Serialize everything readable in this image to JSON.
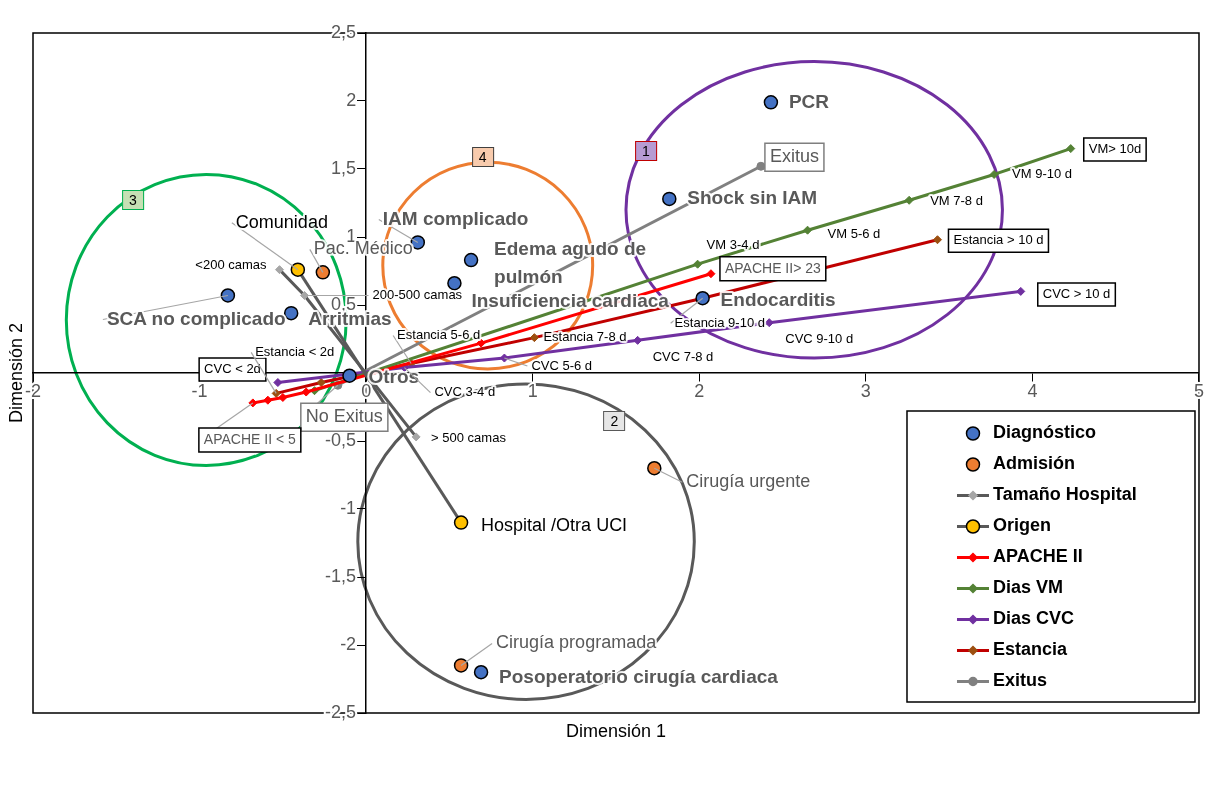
{
  "chart_data": {
    "type": "scatter",
    "xlabel": "Dimensión 1",
    "ylabel": "Dimensión 2",
    "xlim": [
      -2,
      5
    ],
    "ylim": [
      -2.5,
      2.5
    ],
    "xticks": [
      -2,
      -1,
      0,
      1,
      2,
      3,
      4,
      5
    ],
    "yticks": [
      {
        "value": 2.5,
        "label": "2,5"
      },
      2,
      {
        "value": 1.5,
        "label": "1,5"
      },
      1,
      {
        "value": 0.5,
        "label": "0,5"
      },
      {
        "value": 0,
        "label": null
      },
      {
        "value": -0.5,
        "label": "-0,5"
      },
      -1,
      {
        "value": -1.5,
        "label": "-1,5"
      },
      -2,
      {
        "value": -2.5,
        "label": "-2,5"
      }
    ],
    "legend": "bottom right",
    "series": [
      {
        "name": "Diagnóstico",
        "type": "scatter",
        "marker": "circle",
        "color": "#4472c4",
        "x": [
          2.43,
          1.82,
          0.31,
          0.63,
          0.53,
          2.02,
          -0.83,
          -0.45,
          -0.1,
          0.69
        ],
        "values": [
          1.99,
          1.28,
          0.96,
          0.83,
          0.66,
          0.55,
          0.57,
          0.44,
          -0.02,
          -2.2
        ]
      },
      {
        "name": "Admisión",
        "type": "scatter",
        "marker": "circle",
        "color": "#ed7d31",
        "x": [
          -0.26,
          1.73,
          0.57
        ],
        "values": [
          0.74,
          -0.7,
          -2.15
        ]
      },
      {
        "name": "Tamaño Hospital",
        "type": "line",
        "marker": "diamond",
        "color": "#595959",
        "colors": [
          "#a6a6a6",
          "#a6a6a6",
          "#a6a6a6"
        ],
        "x": [
          -0.52,
          -0.37,
          0.3
        ],
        "values": [
          0.76,
          0.57,
          -0.47
        ]
      },
      {
        "name": "Origen",
        "type": "line",
        "marker": "circle",
        "color": "#595959",
        "colors": [
          "#ffc000",
          "#ffc000"
        ],
        "x": [
          -0.41,
          0.57
        ],
        "values": [
          0.76,
          -1.1
        ]
      },
      {
        "name": "APACHE II",
        "type": "line",
        "marker": "diamond",
        "color": "#ff0000",
        "x": [
          -0.68,
          -0.59,
          -0.5,
          -0.36,
          0.69,
          2.07
        ],
        "values": [
          -0.22,
          -0.2,
          -0.18,
          -0.14,
          0.22,
          0.73
        ]
      },
      {
        "name": "Dias VM",
        "type": "line",
        "marker": "diamond",
        "color": "#548235",
        "x": [
          -0.31,
          1.99,
          2.65,
          3.26,
          3.77,
          4.23
        ],
        "values": [
          -0.13,
          0.8,
          1.05,
          1.27,
          1.46,
          1.65
        ]
      },
      {
        "name": "Dias CVC",
        "type": "line",
        "marker": "diamond",
        "color": "#7030a0",
        "x": [
          -0.53,
          0.23,
          0.83,
          1.63,
          2.42,
          3.93
        ],
        "values": [
          -0.07,
          0.04,
          0.11,
          0.24,
          0.37,
          0.6
        ]
      },
      {
        "name": "Estancia",
        "type": "line",
        "marker": "diamond",
        "color": "#c00000",
        "colors": [
          "#9c4f10",
          "#9c4f10",
          "#9c4f10",
          "#9c4f10",
          "#9c4f10",
          "#9c4f10"
        ],
        "x": [
          -0.54,
          -0.27,
          0.27,
          1.01,
          2.02,
          3.43
        ],
        "values": [
          -0.15,
          -0.07,
          0.07,
          0.26,
          0.55,
          0.98
        ]
      },
      {
        "name": "Exitus",
        "type": "line",
        "marker": "circle",
        "color": "#808080",
        "x": [
          -0.17,
          2.37
        ],
        "values": [
          -0.09,
          1.52
        ]
      }
    ],
    "annotations": [
      {
        "text": "PCR",
        "x": 2.43,
        "y": 1.99
      },
      {
        "text": "Shock sin IAM",
        "x": 1.82,
        "y": 1.28
      },
      {
        "text": "IAM complicado",
        "x": 0.31,
        "y": 0.96
      },
      {
        "text": "Edema agudo de pulmón",
        "x": 0.63,
        "y": 0.83
      },
      {
        "text": "Insuficiencia cardiaca",
        "x": 0.53,
        "y": 0.66
      },
      {
        "text": "Endocarditis",
        "x": 2.02,
        "y": 0.55
      },
      {
        "text": "SCA no complicado",
        "x": -0.83,
        "y": 0.57
      },
      {
        "text": "Arritmias",
        "x": -0.45,
        "y": 0.44
      },
      {
        "text": "Otros",
        "x": -0.1,
        "y": -0.02
      },
      {
        "text": "Posoperatorio cirugía cardiaca",
        "x": 0.69,
        "y": -2.2
      },
      {
        "text": "Pac. Médico",
        "x": -0.26,
        "y": 0.74
      },
      {
        "text": "Cirugía urgente",
        "x": 1.73,
        "y": -0.7
      },
      {
        "text": "Cirugía programada",
        "x": 0.57,
        "y": -2.15
      },
      {
        "text": "Comunidad",
        "x": -0.41,
        "y": 0.76
      },
      {
        "text": "Hospital /Otra UCI",
        "x": 0.57,
        "y": -1.1
      },
      {
        "text": "<200 camas",
        "x": -0.52,
        "y": 0.76
      },
      {
        "text": "200-500 camas",
        "x": -0.37,
        "y": 0.57
      },
      {
        "text": "> 500 camas",
        "x": 0.3,
        "y": -0.47
      },
      {
        "text": "No Exitus",
        "x": -0.17,
        "y": -0.09
      },
      {
        "text": "Exitus",
        "x": 2.37,
        "y": 1.52
      },
      {
        "text": "CVC < 2d",
        "x": -0.53,
        "y": -0.07
      },
      {
        "text": "CVC 3-4 d",
        "x": 0.23,
        "y": 0.04
      },
      {
        "text": "CVC 5-6 d",
        "x": 0.83,
        "y": 0.11
      },
      {
        "text": "CVC 7-8 d",
        "x": 1.63,
        "y": 0.24
      },
      {
        "text": "CVC 9-10 d",
        "x": 2.42,
        "y": 0.37
      },
      {
        "text": "CVC > 10 d",
        "x": 3.93,
        "y": 0.6
      },
      {
        "text": "VM 3-4 d",
        "x": 1.99,
        "y": 0.8
      },
      {
        "text": "VM 5-6 d",
        "x": 2.65,
        "y": 1.05
      },
      {
        "text": "VM 7-8 d",
        "x": 3.26,
        "y": 1.27
      },
      {
        "text": "VM 9-10 d",
        "x": 3.77,
        "y": 1.46
      },
      {
        "text": "VM> 10d",
        "x": 4.23,
        "y": 1.65
      },
      {
        "text": "Estancia < 2d",
        "x": -0.54,
        "y": -0.15
      },
      {
        "text": "Estancia 5-6 d",
        "x": 0.27,
        "y": 0.07
      },
      {
        "text": "Estancia 7-8 d",
        "x": 1.01,
        "y": 0.26
      },
      {
        "text": "Estancia 9-10 d",
        "x": 2.02,
        "y": 0.55
      },
      {
        "text": "Estancia > 10 d",
        "x": 3.43,
        "y": 0.98
      },
      {
        "text": "APACHE II < 5",
        "x": -0.68,
        "y": -0.22
      },
      {
        "text": "APACHE II> 23",
        "x": 2.07,
        "y": 0.73
      },
      "1",
      "2",
      "3",
      "4"
    ]
  }
}
